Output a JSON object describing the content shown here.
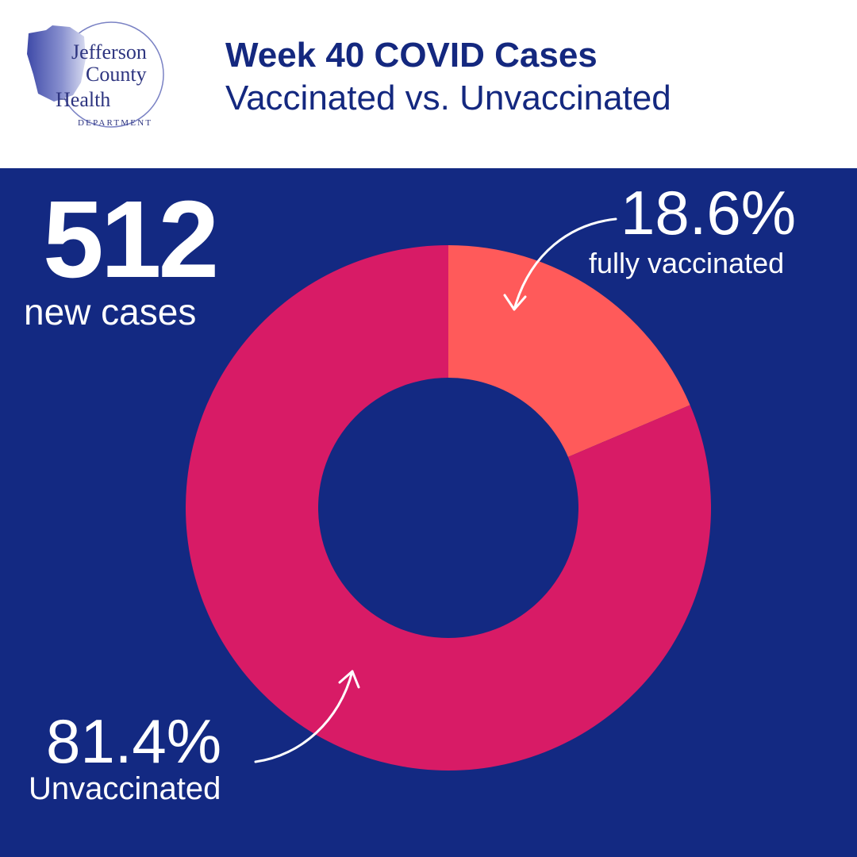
{
  "header": {
    "logo": {
      "line1": "Jefferson",
      "line2": "County",
      "line3": "Health",
      "line4": "DEPARTMENT"
    },
    "title": "Week 40 COVID Cases",
    "subtitle": "Vaccinated vs. Unvaccinated"
  },
  "summary": {
    "count": "512",
    "count_label": "new cases"
  },
  "labels": {
    "vaccinated_pct": "18.6%",
    "vaccinated_text": "fully vaccinated",
    "unvaccinated_pct": "81.4%",
    "unvaccinated_text": "Unvaccinated"
  },
  "colors": {
    "background": "#132982",
    "header_bg": "#ffffff",
    "title": "#14287f",
    "vaccinated": "#ff5a5a",
    "unvaccinated": "#d81b66"
  },
  "chart_data": {
    "type": "pie",
    "title": "Week 40 COVID Cases",
    "categories": [
      "fully vaccinated",
      "Unvaccinated"
    ],
    "values": [
      18.6,
      81.4
    ],
    "unit": "%",
    "colors": [
      "#ff5a5a",
      "#d81b66"
    ],
    "total": 512
  }
}
